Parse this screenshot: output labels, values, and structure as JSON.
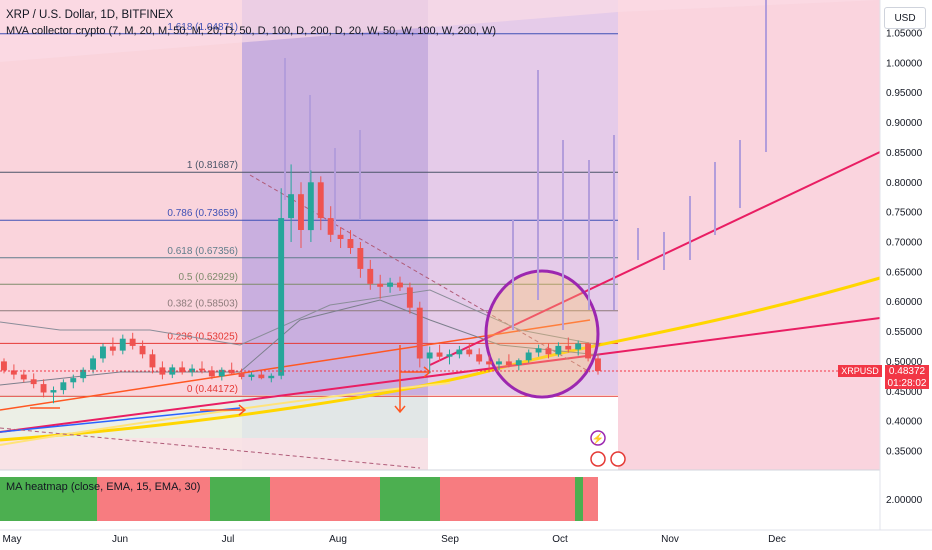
{
  "header": {
    "title": "XRP / U.S. Dollar, 1D, BITFINEX",
    "indicator": "MVA collector crypto (7, M, 20, M, 50, M, 20, D, 50, D, 100, D, 200, D, 20, W, 50, W, 100, W, 200, W)",
    "currency_button": "USD"
  },
  "heatmap": {
    "label": "MA heatmap (close, EMA, 15, EMA, 30)",
    "axis_value": "2.00000",
    "segments": [
      {
        "state": "bull",
        "color": "#4caf50"
      },
      {
        "state": "bear",
        "color": "#f77c80"
      },
      {
        "state": "bull",
        "color": "#4caf50"
      },
      {
        "state": "bear",
        "color": "#f77c80"
      },
      {
        "state": "bull",
        "color": "#4caf50"
      },
      {
        "state": "bear",
        "color": "#f77c80"
      },
      {
        "state": "bull",
        "color": "#4caf50"
      },
      {
        "state": "bear",
        "color": "#f77c80"
      }
    ]
  },
  "price_badges": {
    "symbol": "XRPUSD",
    "last_price": "0.48372",
    "countdown": "01:28:02"
  },
  "colors": {
    "bull": "#26a69a",
    "bear": "#ef5350",
    "fib_red": "#f23645",
    "yellow": "#ffd600",
    "purple": "#9c27b0",
    "pink_zone": "#f8bbd0",
    "purple_zone": "#b39ddb"
  },
  "chart_data": {
    "type": "candlestick",
    "symbol": "XRPUSD",
    "timeframe": "1D",
    "exchange": "BITFINEX",
    "x_tick_labels": [
      "May",
      "Jun",
      "Jul",
      "Aug",
      "Sep",
      "Oct",
      "Nov",
      "Dec"
    ],
    "y_tick_labels": [
      "1.05000",
      "1.00000",
      "0.95000",
      "0.90000",
      "0.85000",
      "0.80000",
      "0.75000",
      "0.70000",
      "0.65000",
      "0.60000",
      "0.55000",
      "0.50000",
      "0.45000",
      "0.40000",
      "0.35000"
    ],
    "ylim": [
      0.32,
      1.08
    ],
    "fib_levels": [
      {
        "label": "1.618 (1.04871)",
        "value": 1.04871
      },
      {
        "label": "1 (0.81687)",
        "value": 0.81687
      },
      {
        "label": "0.786 (0.73659)",
        "value": 0.73659
      },
      {
        "label": "0.618 (0.67356)",
        "value": 0.67356
      },
      {
        "label": "0.5 (0.62929)",
        "value": 0.62929
      },
      {
        "label": "0.382 (0.58503)",
        "value": 0.58503
      },
      {
        "label": "0.236 (0.53025)",
        "value": 0.53025
      },
      {
        "label": "0 (0.44172)",
        "value": 0.44172
      }
    ],
    "candles": [
      {
        "o": 0.5,
        "h": 0.505,
        "l": 0.48,
        "c": 0.485
      },
      {
        "o": 0.485,
        "h": 0.495,
        "l": 0.47,
        "c": 0.478
      },
      {
        "o": 0.478,
        "h": 0.486,
        "l": 0.465,
        "c": 0.47
      },
      {
        "o": 0.47,
        "h": 0.48,
        "l": 0.455,
        "c": 0.462
      },
      {
        "o": 0.462,
        "h": 0.47,
        "l": 0.44,
        "c": 0.448
      },
      {
        "o": 0.448,
        "h": 0.458,
        "l": 0.43,
        "c": 0.452
      },
      {
        "o": 0.452,
        "h": 0.47,
        "l": 0.445,
        "c": 0.465
      },
      {
        "o": 0.465,
        "h": 0.478,
        "l": 0.455,
        "c": 0.472
      },
      {
        "o": 0.472,
        "h": 0.49,
        "l": 0.465,
        "c": 0.486
      },
      {
        "o": 0.486,
        "h": 0.51,
        "l": 0.48,
        "c": 0.505
      },
      {
        "o": 0.505,
        "h": 0.53,
        "l": 0.498,
        "c": 0.525
      },
      {
        "o": 0.525,
        "h": 0.54,
        "l": 0.51,
        "c": 0.518
      },
      {
        "o": 0.518,
        "h": 0.545,
        "l": 0.512,
        "c": 0.538
      },
      {
        "o": 0.538,
        "h": 0.548,
        "l": 0.52,
        "c": 0.526
      },
      {
        "o": 0.526,
        "h": 0.535,
        "l": 0.505,
        "c": 0.512
      },
      {
        "o": 0.512,
        "h": 0.52,
        "l": 0.48,
        "c": 0.49
      },
      {
        "o": 0.49,
        "h": 0.5,
        "l": 0.47,
        "c": 0.478
      },
      {
        "o": 0.478,
        "h": 0.495,
        "l": 0.472,
        "c": 0.49
      },
      {
        "o": 0.49,
        "h": 0.5,
        "l": 0.478,
        "c": 0.482
      },
      {
        "o": 0.482,
        "h": 0.495,
        "l": 0.475,
        "c": 0.488
      },
      {
        "o": 0.488,
        "h": 0.5,
        "l": 0.48,
        "c": 0.485
      },
      {
        "o": 0.485,
        "h": 0.492,
        "l": 0.47,
        "c": 0.475
      },
      {
        "o": 0.475,
        "h": 0.49,
        "l": 0.468,
        "c": 0.486
      },
      {
        "o": 0.486,
        "h": 0.498,
        "l": 0.478,
        "c": 0.48
      },
      {
        "o": 0.48,
        "h": 0.488,
        "l": 0.47,
        "c": 0.474
      },
      {
        "o": 0.474,
        "h": 0.482,
        "l": 0.468,
        "c": 0.478
      },
      {
        "o": 0.478,
        "h": 0.484,
        "l": 0.47,
        "c": 0.472
      },
      {
        "o": 0.472,
        "h": 0.48,
        "l": 0.465,
        "c": 0.476
      },
      {
        "o": 0.476,
        "h": 0.79,
        "l": 0.47,
        "c": 0.74
      },
      {
        "o": 0.74,
        "h": 0.83,
        "l": 0.7,
        "c": 0.78
      },
      {
        "o": 0.78,
        "h": 0.8,
        "l": 0.69,
        "c": 0.72
      },
      {
        "o": 0.72,
        "h": 0.82,
        "l": 0.7,
        "c": 0.8
      },
      {
        "o": 0.8,
        "h": 0.81,
        "l": 0.72,
        "c": 0.74
      },
      {
        "o": 0.74,
        "h": 0.76,
        "l": 0.7,
        "c": 0.712
      },
      {
        "o": 0.712,
        "h": 0.725,
        "l": 0.69,
        "c": 0.705
      },
      {
        "o": 0.705,
        "h": 0.72,
        "l": 0.68,
        "c": 0.69
      },
      {
        "o": 0.69,
        "h": 0.7,
        "l": 0.64,
        "c": 0.655
      },
      {
        "o": 0.655,
        "h": 0.67,
        "l": 0.62,
        "c": 0.63
      },
      {
        "o": 0.63,
        "h": 0.645,
        "l": 0.605,
        "c": 0.625
      },
      {
        "o": 0.625,
        "h": 0.64,
        "l": 0.615,
        "c": 0.632
      },
      {
        "o": 0.632,
        "h": 0.642,
        "l": 0.618,
        "c": 0.624
      },
      {
        "o": 0.624,
        "h": 0.632,
        "l": 0.58,
        "c": 0.59
      },
      {
        "o": 0.59,
        "h": 0.6,
        "l": 0.49,
        "c": 0.505
      },
      {
        "o": 0.505,
        "h": 0.525,
        "l": 0.48,
        "c": 0.515
      },
      {
        "o": 0.515,
        "h": 0.528,
        "l": 0.5,
        "c": 0.508
      },
      {
        "o": 0.508,
        "h": 0.52,
        "l": 0.495,
        "c": 0.512
      },
      {
        "o": 0.512,
        "h": 0.526,
        "l": 0.505,
        "c": 0.52
      },
      {
        "o": 0.52,
        "h": 0.53,
        "l": 0.508,
        "c": 0.512
      },
      {
        "o": 0.512,
        "h": 0.522,
        "l": 0.495,
        "c": 0.5
      },
      {
        "o": 0.5,
        "h": 0.51,
        "l": 0.488,
        "c": 0.495
      },
      {
        "o": 0.495,
        "h": 0.505,
        "l": 0.485,
        "c": 0.5
      },
      {
        "o": 0.5,
        "h": 0.512,
        "l": 0.49,
        "c": 0.494
      },
      {
        "o": 0.494,
        "h": 0.505,
        "l": 0.485,
        "c": 0.502
      },
      {
        "o": 0.502,
        "h": 0.52,
        "l": 0.498,
        "c": 0.515
      },
      {
        "o": 0.515,
        "h": 0.528,
        "l": 0.508,
        "c": 0.522
      },
      {
        "o": 0.522,
        "h": 0.53,
        "l": 0.505,
        "c": 0.512
      },
      {
        "o": 0.512,
        "h": 0.532,
        "l": 0.508,
        "c": 0.526
      },
      {
        "o": 0.526,
        "h": 0.54,
        "l": 0.515,
        "c": 0.52
      },
      {
        "o": 0.52,
        "h": 0.535,
        "l": 0.51,
        "c": 0.53
      },
      {
        "o": 0.53,
        "h": 0.532,
        "l": 0.5,
        "c": 0.505
      },
      {
        "o": 0.505,
        "h": 0.51,
        "l": 0.478,
        "c": 0.484
      }
    ]
  }
}
